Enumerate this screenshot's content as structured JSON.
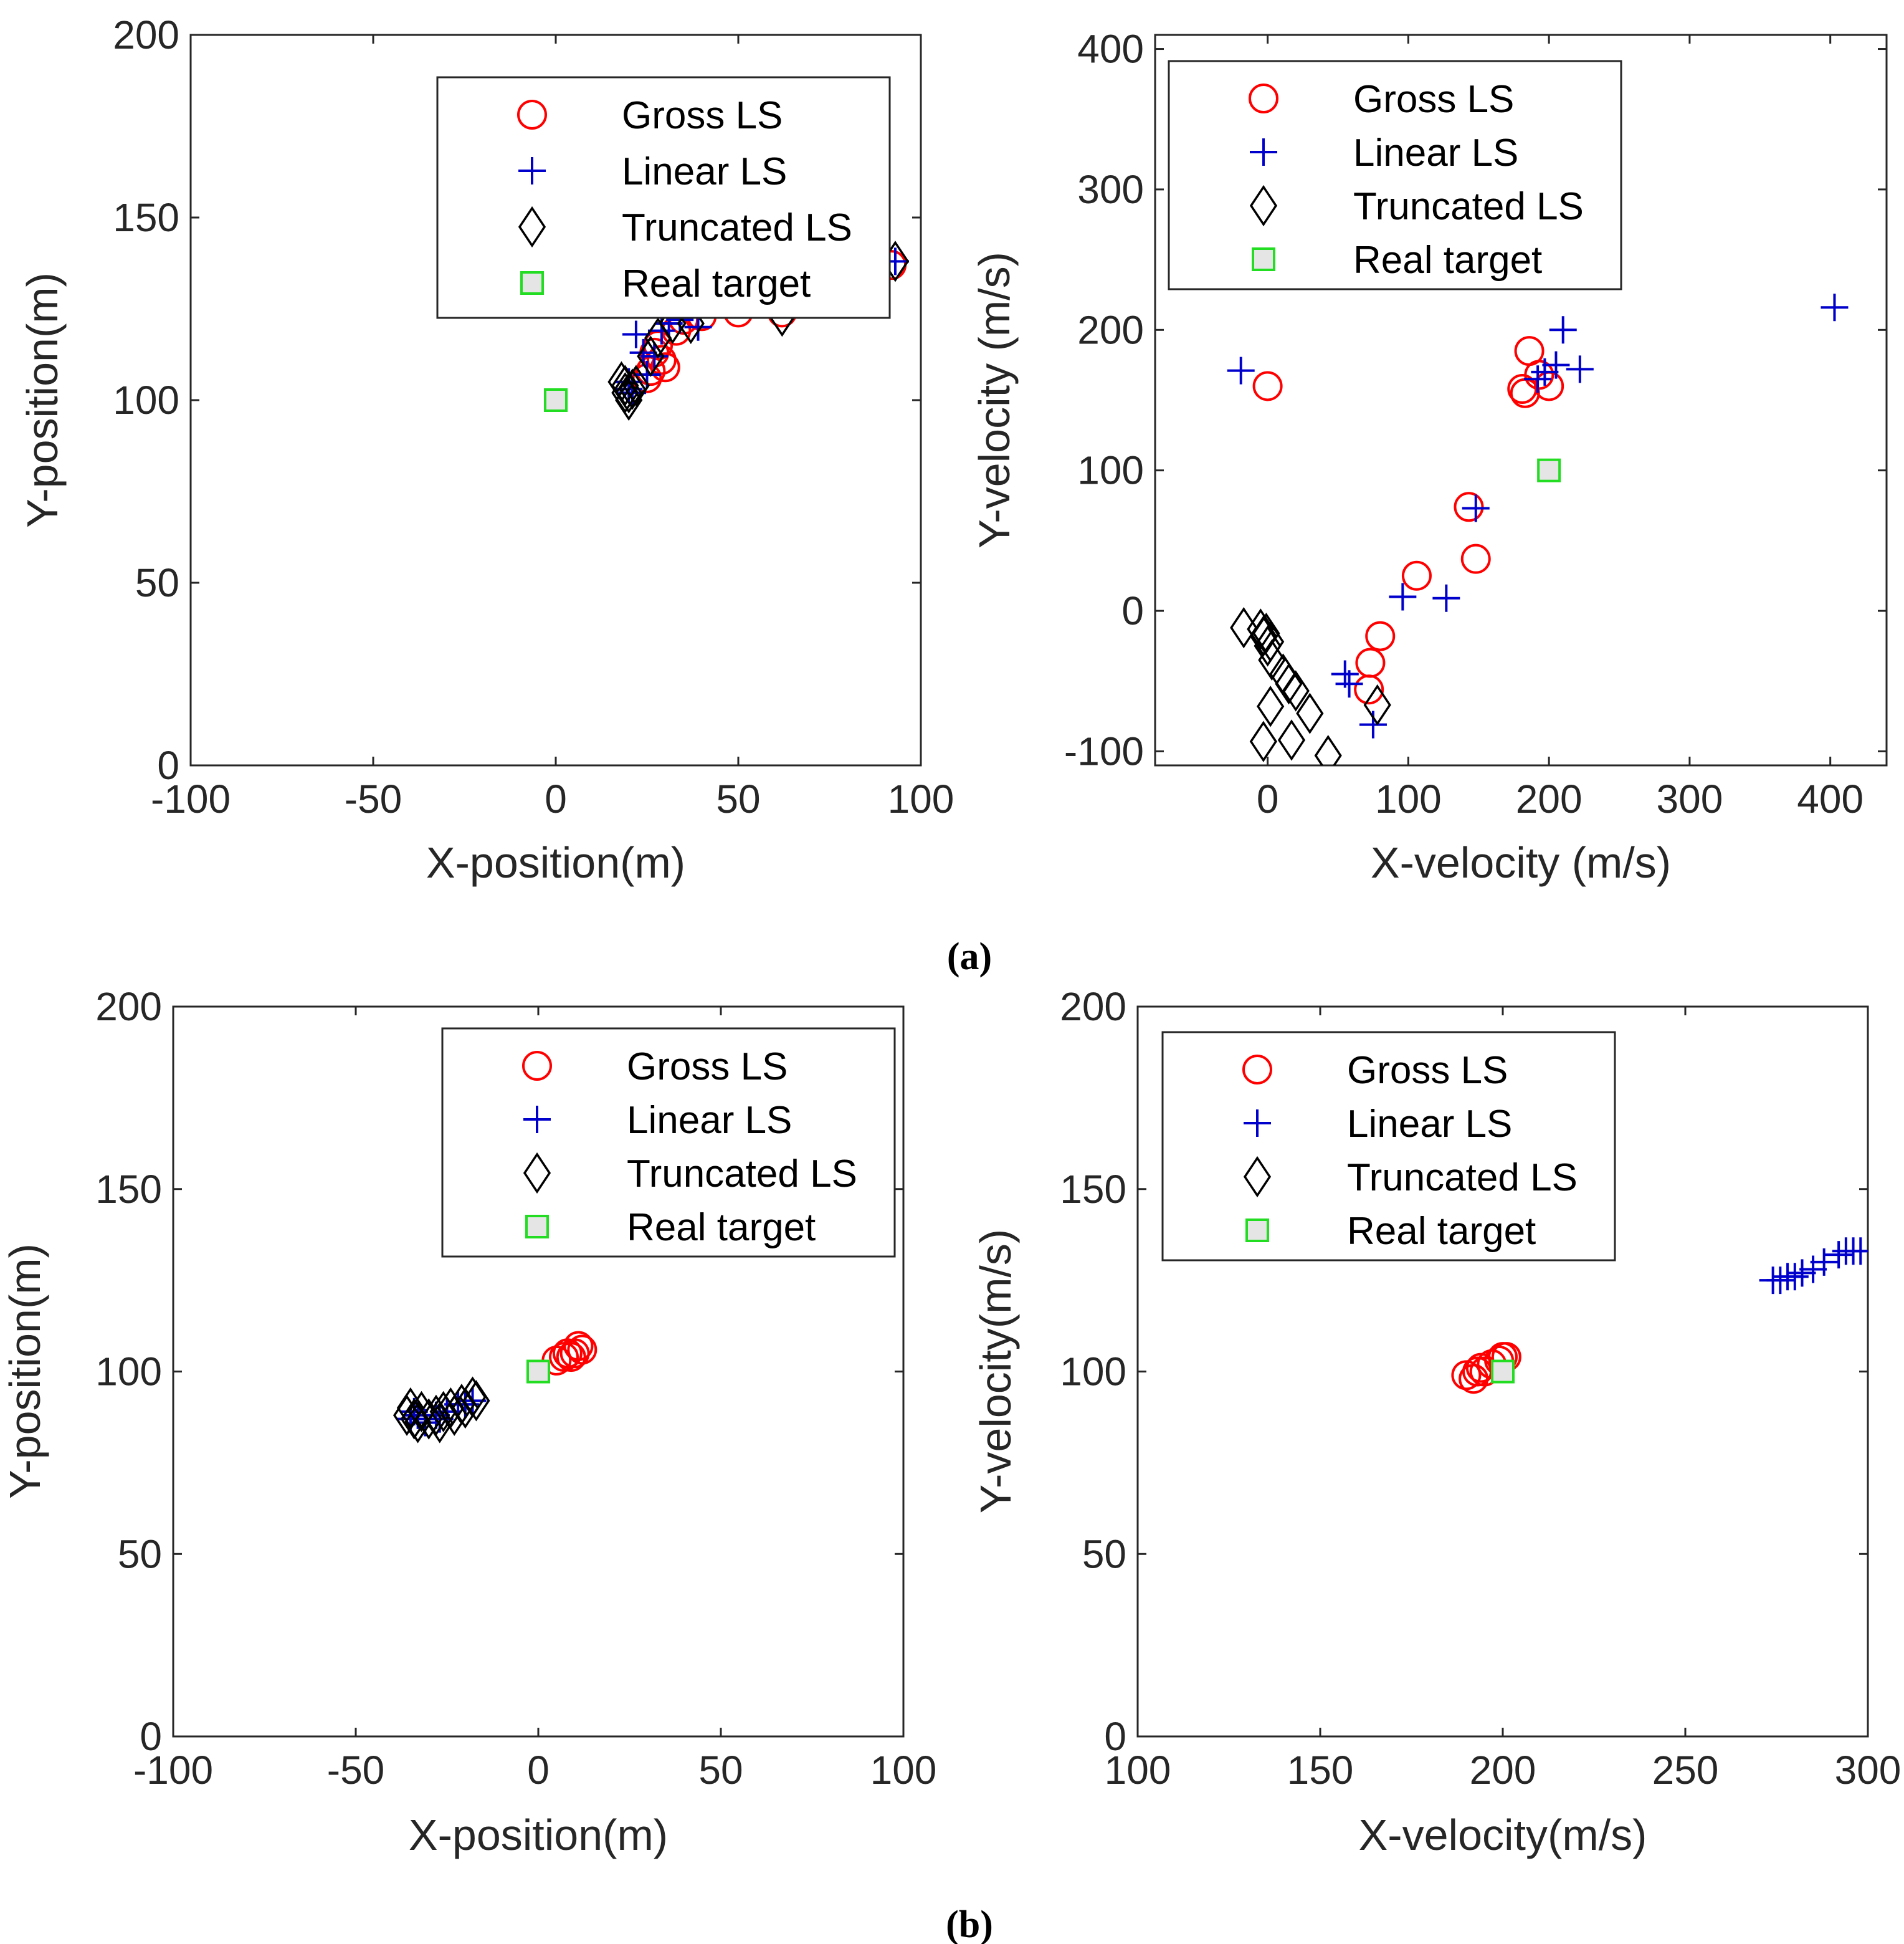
{
  "legend_labels": {
    "gross": "Gross LS",
    "linear": "Linear LS",
    "truncated": "Truncated LS",
    "real": "Real target"
  },
  "colors": {
    "gross": "#ff0000",
    "linear": "#0000cc",
    "truncated": "#000000",
    "real_edge": "#22dd22",
    "real_fill": "#e5e5e5",
    "axis": "#262626"
  },
  "captions": {
    "a": "(a)",
    "b": "(b)"
  },
  "chart_data": [
    {
      "id": "a-position",
      "type": "scatter",
      "panel": "(a)",
      "xlabel": "X-position(m)",
      "ylabel": "Y-position(m)",
      "xlim": [
        -100,
        100
      ],
      "ylim": [
        0,
        200
      ],
      "xticks": [
        -100,
        -50,
        0,
        50,
        100
      ],
      "yticks": [
        0,
        50,
        100,
        150,
        200
      ],
      "legend_position": "top-right",
      "series": [
        {
          "name": "Gross LS",
          "marker": "circle",
          "points": [
            [
              26,
              108
            ],
            [
              27,
              113
            ],
            [
              29,
              111
            ],
            [
              30,
              109
            ],
            [
              28,
              115
            ],
            [
              33,
              119
            ],
            [
              35,
              122
            ],
            [
              40,
              123
            ],
            [
              50,
              124
            ],
            [
              62,
              124
            ],
            [
              25,
              106
            ],
            [
              92,
              137
            ]
          ]
        },
        {
          "name": "Linear LS",
          "marker": "plus",
          "points": [
            [
              20,
              105
            ],
            [
              21,
              102
            ],
            [
              22,
              118
            ],
            [
              24,
              113
            ],
            [
              27,
              112
            ],
            [
              29,
              119
            ],
            [
              31,
              121
            ],
            [
              34,
              122
            ],
            [
              39,
              120
            ],
            [
              93,
              138
            ],
            [
              25,
              107
            ],
            [
              20,
              103
            ]
          ]
        },
        {
          "name": "Truncated LS",
          "marker": "diamond",
          "points": [
            [
              18,
              105
            ],
            [
              19,
              104
            ],
            [
              20,
              102
            ],
            [
              21,
              103
            ],
            [
              20,
              100
            ],
            [
              22,
              104
            ],
            [
              26,
              112
            ],
            [
              28,
              117
            ],
            [
              32,
              121
            ],
            [
              37,
              121
            ],
            [
              62,
              123
            ],
            [
              93,
              138
            ],
            [
              19,
              102
            ]
          ]
        },
        {
          "name": "Real target",
          "marker": "square",
          "points": [
            [
              0,
              100
            ]
          ]
        }
      ]
    },
    {
      "id": "a-velocity",
      "type": "scatter",
      "panel": "(a)",
      "xlabel": "X-velocity (m/s)",
      "ylabel": "Y-velocity (m/s)",
      "xlim": [
        -80,
        440
      ],
      "ylim": [
        -110,
        410
      ],
      "xticks": [
        0,
        100,
        200,
        300,
        400
      ],
      "yticks": [
        -100,
        0,
        100,
        200,
        300,
        400
      ],
      "legend_position": "top-left",
      "series": [
        {
          "name": "Gross LS",
          "marker": "circle",
          "points": [
            [
              0,
              160
            ],
            [
              181,
              158
            ],
            [
              183,
              155
            ],
            [
              186,
              185
            ],
            [
              193,
              168
            ],
            [
              200,
              160
            ],
            [
              143,
              74
            ],
            [
              148,
              37
            ],
            [
              106,
              25
            ],
            [
              80,
              -18
            ],
            [
              73,
              -37
            ],
            [
              72,
              -56
            ]
          ]
        },
        {
          "name": "Linear LS",
          "marker": "plus",
          "points": [
            [
              -19,
              171
            ],
            [
              210,
              200
            ],
            [
              205,
              175
            ],
            [
              192,
              165
            ],
            [
              197,
              170
            ],
            [
              222,
              172
            ],
            [
              148,
              73
            ],
            [
              96,
              10
            ],
            [
              127,
              9
            ],
            [
              55,
              -45
            ],
            [
              58,
              -52
            ],
            [
              75,
              -81
            ],
            [
              403,
              216
            ]
          ]
        },
        {
          "name": "Truncated LS",
          "marker": "diamond",
          "points": [
            [
              -17,
              -12
            ],
            [
              -5,
              -13
            ],
            [
              -3,
              -18
            ],
            [
              -1,
              -16
            ],
            [
              2,
              -22
            ],
            [
              0,
              -25
            ],
            [
              3,
              -35
            ],
            [
              11,
              -45
            ],
            [
              15,
              -52
            ],
            [
              20,
              -57
            ],
            [
              30,
              -73
            ],
            [
              2,
              -68
            ],
            [
              -3,
              -93
            ],
            [
              17,
              -92
            ],
            [
              43,
              -103
            ],
            [
              78,
              -67
            ]
          ]
        },
        {
          "name": "Real target",
          "marker": "square",
          "points": [
            [
              200,
              100
            ]
          ]
        }
      ]
    },
    {
      "id": "b-position",
      "type": "scatter",
      "panel": "(b)",
      "xlabel": "X-position(m)",
      "ylabel": "Y-position(m)",
      "xlim": [
        -100,
        100
      ],
      "ylim": [
        0,
        200
      ],
      "xticks": [
        -100,
        -50,
        0,
        50,
        100
      ],
      "yticks": [
        0,
        50,
        100,
        150,
        200
      ],
      "legend_position": "top-right",
      "series": [
        {
          "name": "Gross LS",
          "marker": "circle",
          "points": [
            [
              5,
              103
            ],
            [
              7,
              104
            ],
            [
              8,
              105
            ],
            [
              10,
              105
            ],
            [
              11,
              107
            ],
            [
              12,
              106
            ],
            [
              9,
              104
            ]
          ]
        },
        {
          "name": "Linear LS",
          "marker": "plus",
          "points": [
            [
              -35,
              87
            ],
            [
              -33,
              88
            ],
            [
              -31,
              86
            ],
            [
              -28,
              88
            ],
            [
              -25,
              89
            ],
            [
              -22,
              91
            ],
            [
              -20,
              91
            ],
            [
              -18,
              92
            ],
            [
              -34,
              89
            ],
            [
              -27,
              87
            ]
          ]
        },
        {
          "name": "Truncated LS",
          "marker": "diamond",
          "points": [
            [
              -36,
              88
            ],
            [
              -34,
              87
            ],
            [
              -33,
              86
            ],
            [
              -32,
              89
            ],
            [
              -30,
              87
            ],
            [
              -28,
              88
            ],
            [
              -27,
              86
            ],
            [
              -26,
              89
            ],
            [
              -24,
              90
            ],
            [
              -23,
              88
            ],
            [
              -21,
              91
            ],
            [
              -20,
              90
            ],
            [
              -18,
              93
            ],
            [
              -17,
              92
            ],
            [
              -35,
              90
            ]
          ]
        },
        {
          "name": "Real target",
          "marker": "square",
          "points": [
            [
              0,
              100
            ]
          ]
        }
      ]
    },
    {
      "id": "b-velocity",
      "type": "scatter",
      "panel": "(b)",
      "xlabel": "X-velocity(m/s)",
      "ylabel": "Y-velocity(m/s)",
      "xlim": [
        100,
        300
      ],
      "ylim": [
        0,
        200
      ],
      "xticks": [
        100,
        150,
        200,
        250,
        300
      ],
      "yticks": [
        0,
        50,
        100,
        150,
        200
      ],
      "legend_position": "top-left",
      "series": [
        {
          "name": "Gross LS",
          "marker": "circle",
          "points": [
            [
              190,
              99
            ],
            [
              192,
              98
            ],
            [
              194,
              101
            ],
            [
              195,
              100
            ],
            [
              197,
              102
            ],
            [
              199,
              103
            ],
            [
              200,
              104
            ],
            [
              201,
              104
            ],
            [
              193,
              100
            ]
          ]
        },
        {
          "name": "Linear LS",
          "marker": "plus",
          "points": [
            [
              274,
              125
            ],
            [
              276,
              125
            ],
            [
              278,
              126
            ],
            [
              280,
              126
            ],
            [
              282,
              127
            ],
            [
              285,
              128
            ],
            [
              288,
              130
            ],
            [
              292,
              132
            ],
            [
              294,
              133
            ],
            [
              296,
              133
            ],
            [
              298,
              133
            ]
          ]
        },
        {
          "name": "Truncated LS",
          "marker": "diamond",
          "points": []
        },
        {
          "name": "Real target",
          "marker": "square",
          "points": [
            [
              200,
              100
            ]
          ]
        }
      ]
    }
  ]
}
